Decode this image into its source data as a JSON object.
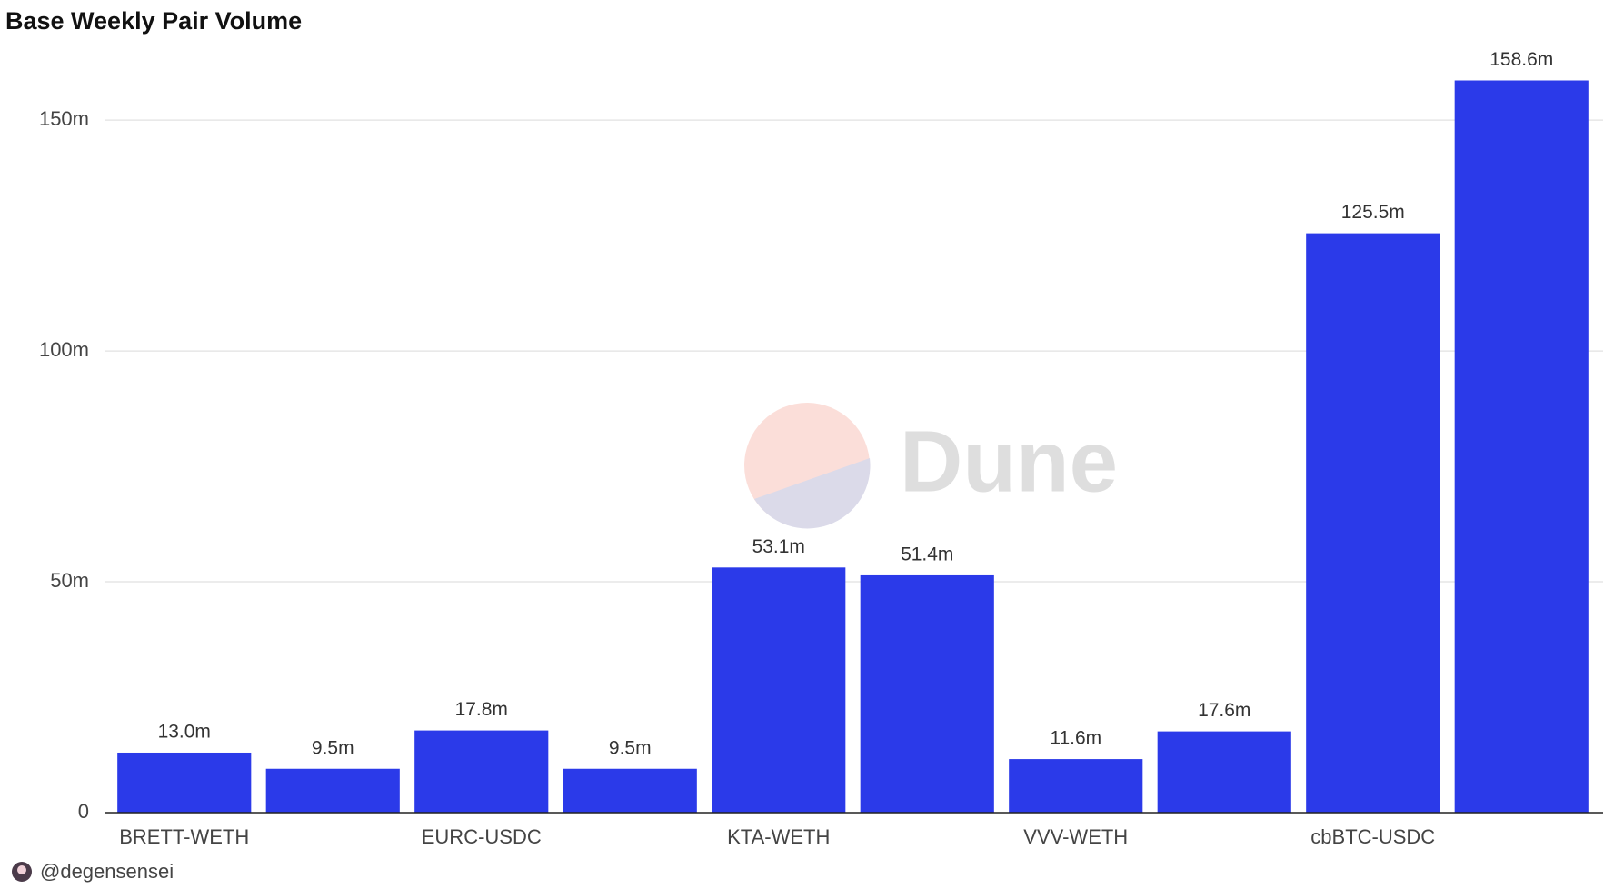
{
  "chart_data": {
    "type": "bar",
    "title": "Base Weekly Pair Volume",
    "categories": [
      "BRETT-WETH",
      null,
      "EURC-USDC",
      null,
      "KTA-WETH",
      null,
      "VVV-WETH",
      null,
      "cbBTC-USDC",
      null
    ],
    "values": [
      13.0,
      9.5,
      17.8,
      9.5,
      53.1,
      51.4,
      11.6,
      17.6,
      125.5,
      158.6
    ],
    "value_labels": [
      "13.0m",
      "9.5m",
      "17.8m",
      "9.5m",
      "53.1m",
      "51.4m",
      "11.6m",
      "17.6m",
      "125.5m",
      "158.6m"
    ],
    "color": "#2b3ae9",
    "ylim": [
      0,
      165
    ],
    "yticks": [
      0,
      {
        "value": 50,
        "label": "50m"
      },
      {
        "value": 100,
        "label": "100m"
      },
      {
        "value": 150,
        "label": "150m"
      }
    ],
    "grid": true,
    "watermark": "Dune",
    "author": "@degensensei"
  }
}
